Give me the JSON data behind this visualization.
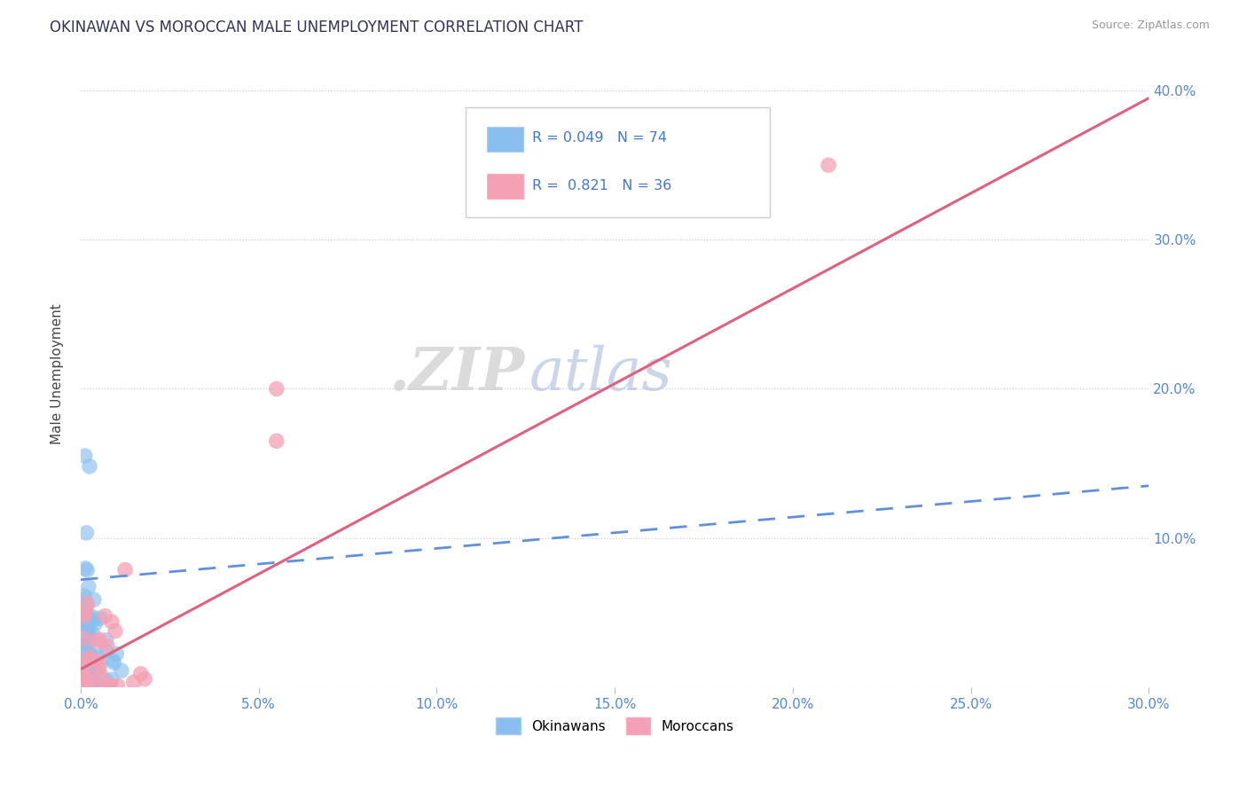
{
  "title": "OKINAWAN VS MOROCCAN MALE UNEMPLOYMENT CORRELATION CHART",
  "source_text": "Source: ZipAtlas.com",
  "ylabel": "Male Unemployment",
  "xmin": 0.0,
  "xmax": 0.3,
  "ymin": 0.0,
  "ymax": 0.42,
  "ytick_labels": [
    "",
    "10.0%",
    "20.0%",
    "30.0%",
    "40.0%"
  ],
  "ytick_values": [
    0.0,
    0.1,
    0.2,
    0.3,
    0.4
  ],
  "xtick_labels": [
    "0.0%",
    "5.0%",
    "10.0%",
    "15.0%",
    "20.0%",
    "25.0%",
    "30.0%"
  ],
  "xtick_values": [
    0.0,
    0.05,
    0.1,
    0.15,
    0.2,
    0.25,
    0.3
  ],
  "okinawan_color": "#89BFEF",
  "moroccan_color": "#F4A0B5",
  "okinawan_line_color": "#6090DD",
  "moroccan_line_color": "#E06080",
  "R_okinawan": 0.049,
  "N_okinawan": 74,
  "R_moroccan": 0.821,
  "N_moroccan": 36,
  "watermark_zip": ".ZIP",
  "watermark_atlas": "atlas",
  "background_color": "#FFFFFF",
  "grid_color": "#CCCCDD",
  "tick_color": "#5588CC",
  "legend_color": "#4477CC",
  "mor_line_x0": 0.0,
  "mor_line_y0": 0.012,
  "mor_line_x1": 0.3,
  "mor_line_y1": 0.395,
  "ok_line_x0": 0.0,
  "ok_line_y0": 0.072,
  "ok_line_x1": 0.3,
  "ok_line_y1": 0.135
}
